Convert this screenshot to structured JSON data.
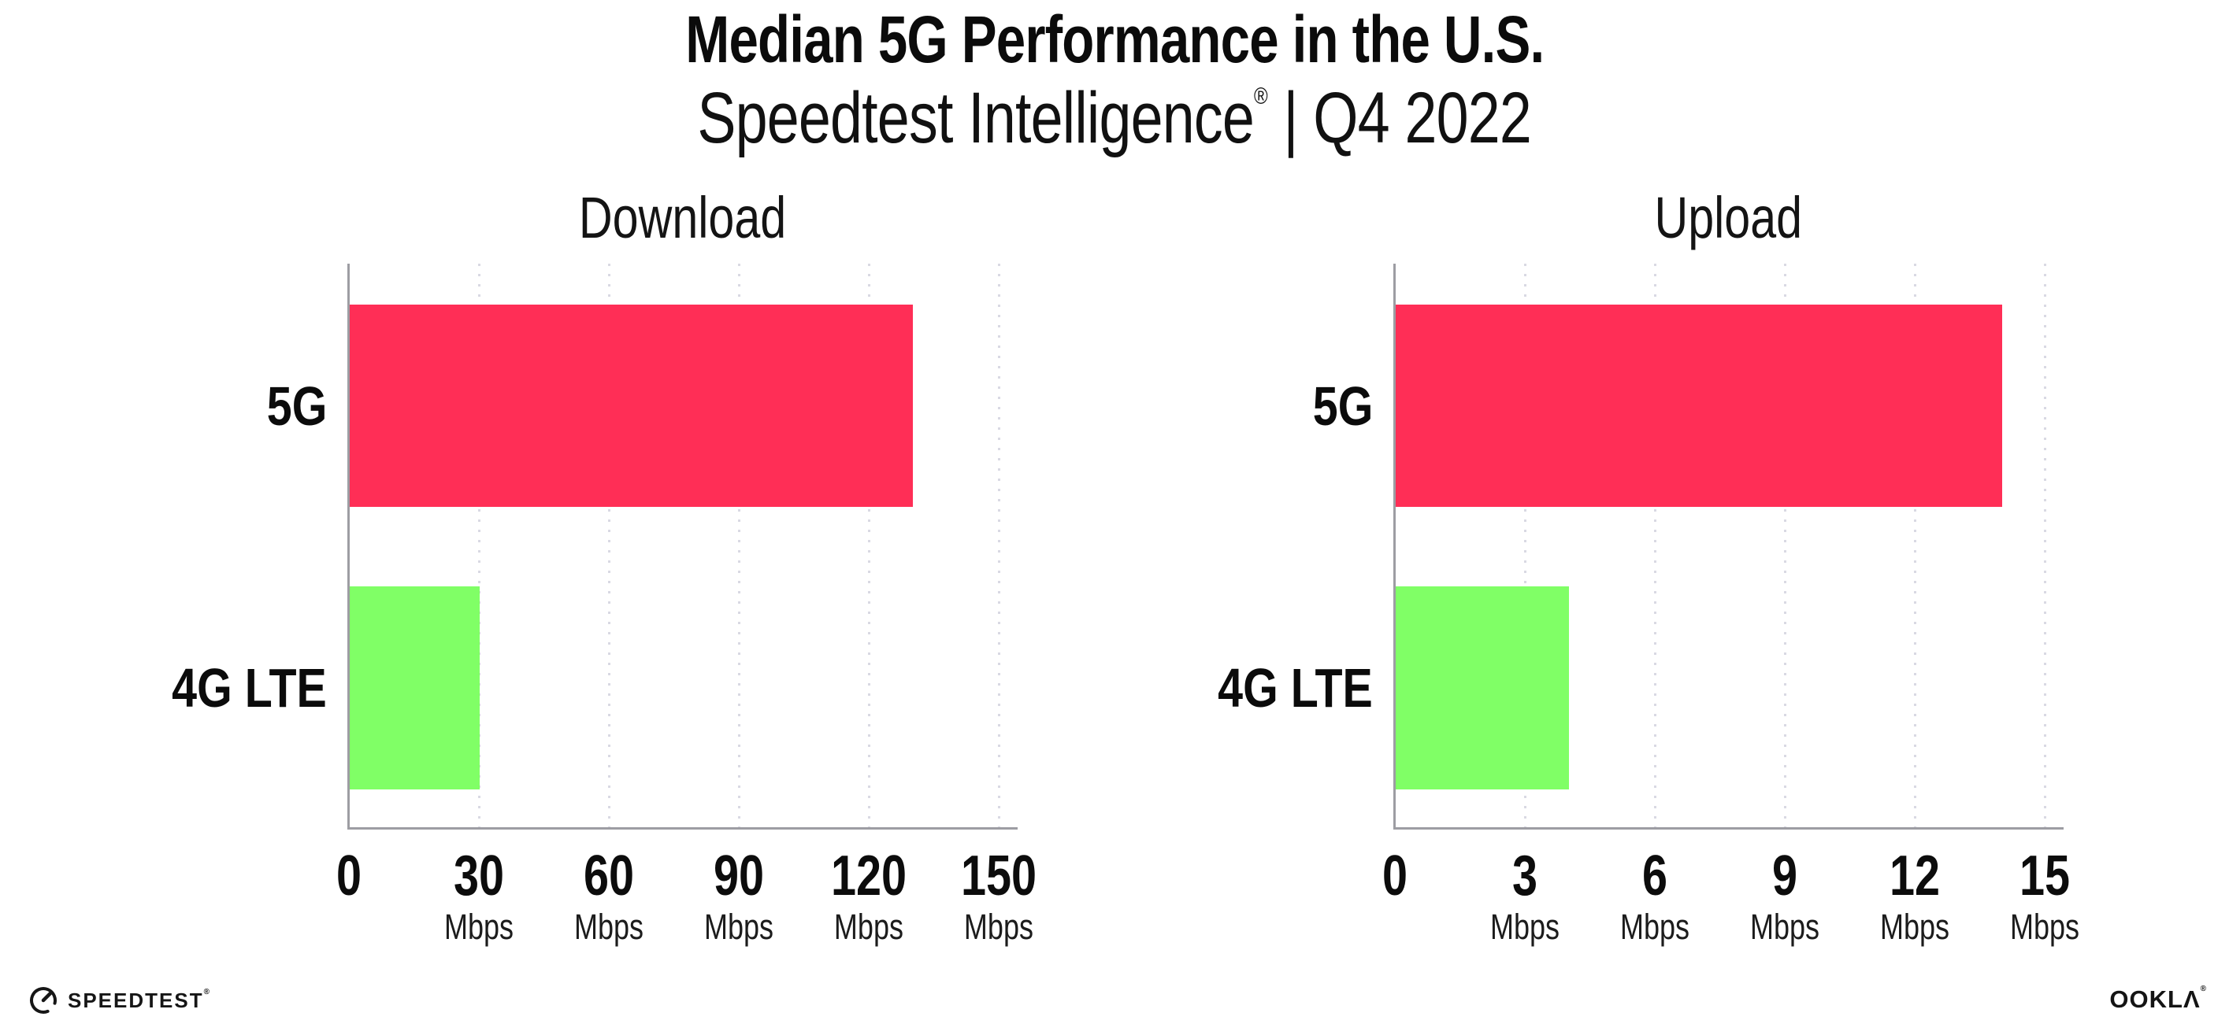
{
  "header": {
    "title": "Median 5G Performance in the U.S.",
    "subtitle_brand": "Speedtest Intelligence",
    "subtitle_reg": "®",
    "subtitle_rest": " | Q4 2022"
  },
  "chart_data": [
    {
      "type": "bar",
      "orientation": "horizontal",
      "title": "Download",
      "categories": [
        "5G",
        "4G LTE"
      ],
      "values": [
        130,
        30
      ],
      "unit": "Mbps",
      "xlim": [
        0,
        150
      ],
      "xticks": [
        0,
        30,
        60,
        90,
        120,
        150
      ],
      "bar_colors": [
        "#FF2E56",
        "#80FF66"
      ],
      "grid": "vertical-dotted",
      "legend": false
    },
    {
      "type": "bar",
      "orientation": "horizontal",
      "title": "Upload",
      "categories": [
        "5G",
        "4G LTE"
      ],
      "values": [
        14,
        4
      ],
      "unit": "Mbps",
      "xlim": [
        0,
        15
      ],
      "xticks": [
        0,
        3,
        6,
        9,
        12,
        15
      ],
      "bar_colors": [
        "#FF2E56",
        "#80FF66"
      ],
      "grid": "vertical-dotted",
      "legend": false
    }
  ],
  "colors": {
    "bar_5g": "#FF2E56",
    "bar_4g_lte": "#80FF66",
    "axis": "#9d9da3",
    "gridline": "#d9d9e3",
    "text": "#0d0d0d"
  },
  "footer": {
    "speedtest_label": "SPEEDTEST",
    "speedtest_mark": "®",
    "ookla_label": "OOKLΛ",
    "ookla_mark": "®"
  }
}
